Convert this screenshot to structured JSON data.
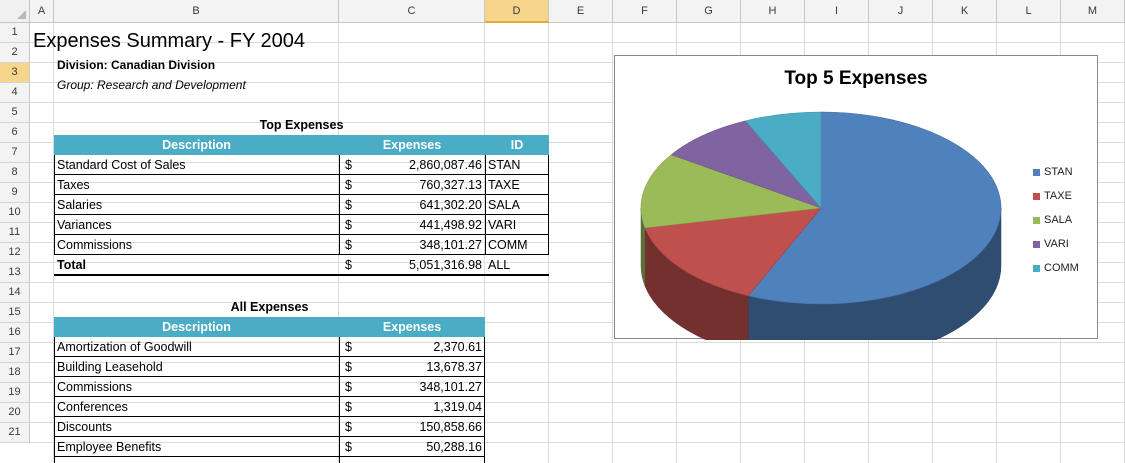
{
  "columns": [
    "A",
    "B",
    "C",
    "D",
    "E",
    "F",
    "G",
    "H",
    "I",
    "J",
    "K",
    "L",
    "M"
  ],
  "rows": [
    "1",
    "2",
    "3",
    "4",
    "5",
    "6",
    "7",
    "8",
    "9",
    "10",
    "11",
    "12",
    "13",
    "14",
    "15",
    "16",
    "17",
    "18",
    "19",
    "20",
    "21"
  ],
  "sheet": {
    "title": "Expenses Summary - FY 2004",
    "division": "Division: Canadian Division",
    "group": "Group: Research and Development",
    "top_expenses": {
      "caption": "Top Expenses",
      "headers": {
        "description": "Description",
        "expenses": "Expenses",
        "id": "ID"
      },
      "rows": [
        {
          "description": "Standard Cost of Sales",
          "currency": "$",
          "amount": "2,860,087.46",
          "id": "STAN"
        },
        {
          "description": "Taxes",
          "currency": "$",
          "amount": "760,327.13",
          "id": "TAXE"
        },
        {
          "description": "Salaries",
          "currency": "$",
          "amount": "641,302.20",
          "id": "SALA"
        },
        {
          "description": "Variances",
          "currency": "$",
          "amount": "441,498.92",
          "id": "VARI"
        },
        {
          "description": "Commissions",
          "currency": "$",
          "amount": "348,101.27",
          "id": "COMM"
        }
      ],
      "total": {
        "description": "Total",
        "currency": "$",
        "amount": "5,051,316.98",
        "id": "ALL"
      }
    },
    "all_expenses": {
      "caption": "All Expenses",
      "headers": {
        "description": "Description",
        "expenses": "Expenses"
      },
      "rows": [
        {
          "description": "Amortization of Goodwill",
          "currency": "$",
          "amount": "2,370.61"
        },
        {
          "description": "Building Leasehold",
          "currency": "$",
          "amount": "13,678.37"
        },
        {
          "description": "Commissions",
          "currency": "$",
          "amount": "348,101.27"
        },
        {
          "description": "Conferences",
          "currency": "$",
          "amount": "1,319.04"
        },
        {
          "description": "Discounts",
          "currency": "$",
          "amount": "150,858.66"
        },
        {
          "description": "Employee Benefits",
          "currency": "$",
          "amount": "50,288.16"
        }
      ]
    }
  },
  "chart_data": {
    "type": "pie",
    "title": "Top 5 Expenses",
    "categories": [
      "STAN",
      "TAXE",
      "SALA",
      "VARI",
      "COMM"
    ],
    "values": [
      2860087.46,
      760327.13,
      641302.2,
      441498.92,
      348101.27
    ],
    "colors": [
      "#4f81bd",
      "#c0504d",
      "#9bbb59",
      "#8064a2",
      "#4bacc6"
    ],
    "legend": "right",
    "style": "3d"
  },
  "selection": {
    "column": "D",
    "row": "3"
  }
}
